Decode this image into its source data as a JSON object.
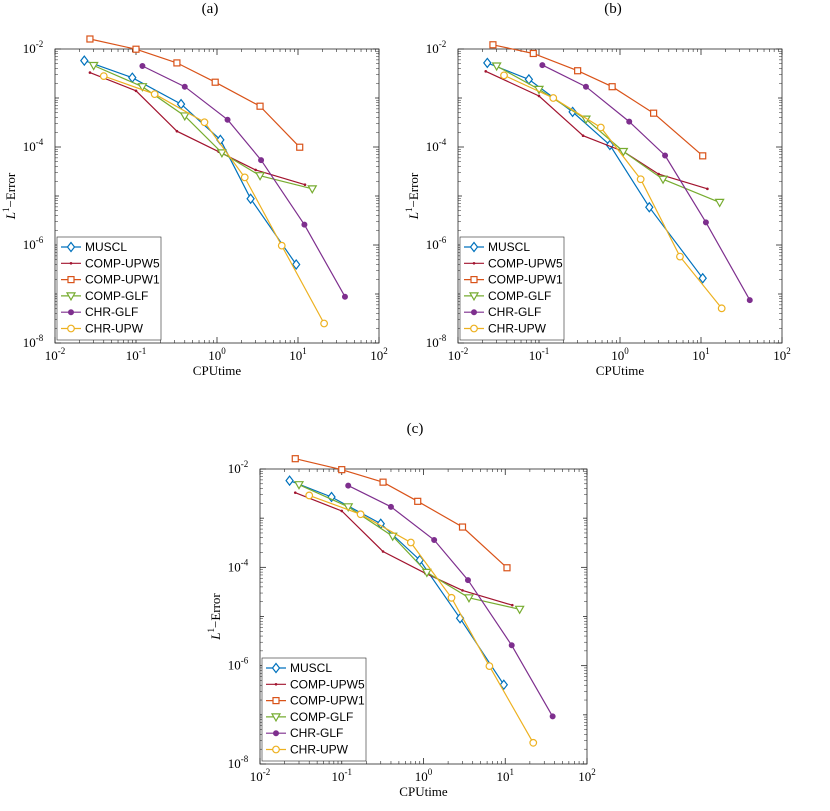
{
  "colors": {
    "MUSCL": "#0072BD",
    "COMP-UPW5": "#A2142F",
    "COMP-UPW1": "#D95319",
    "COMP-GLF": "#77AC30",
    "CHR-GLF": "#7E2F8E",
    "CHR-UPW": "#EDB120"
  },
  "markers": {
    "MUSCL": "diamond",
    "COMP-UPW5": "dot",
    "COMP-UPW1": "square",
    "COMP-GLF": "triangle-down",
    "CHR-GLF": "filled-circle",
    "CHR-UPW": "circle"
  },
  "chart_data": [
    {
      "type": "line",
      "title": "(a)",
      "xlabel": "CPUtime",
      "ylabel_base": "L",
      "ylabel_sup": "1",
      "ylabel_rest": "−Error",
      "xscale": "log",
      "yscale": "log",
      "xlim": [
        0.01,
        100
      ],
      "ylim": [
        1e-08,
        0.01
      ],
      "xticks": [
        {
          "base": "10",
          "exp": "-2"
        },
        {
          "base": "10",
          "exp": "-1"
        },
        {
          "base": "10",
          "exp": "0"
        },
        {
          "base": "10",
          "exp": "1"
        },
        {
          "base": "10",
          "exp": "2"
        }
      ],
      "yticks": [
        {
          "base": "10",
          "exp": "-8"
        },
        {
          "base": "10",
          "exp": "-6"
        },
        {
          "base": "10",
          "exp": "-4"
        },
        {
          "base": "10",
          "exp": "-2"
        }
      ],
      "legend_location": "bottom-left",
      "series": [
        {
          "name": "MUSCL",
          "x": [
            0.023,
            0.09,
            0.36,
            1.1,
            2.6,
            9.5
          ],
          "y": [
            0.0058,
            0.0026,
            0.00075,
            0.00014,
            8.8e-06,
            4e-07
          ]
        },
        {
          "name": "COMP-UPW5",
          "x": [
            0.027,
            0.1,
            0.32,
            1.05,
            3.0,
            12.2
          ],
          "y": [
            0.0033,
            0.0014,
            0.00021,
            8e-05,
            3.4e-05,
            1.7e-05
          ]
        },
        {
          "name": "COMP-UPW1",
          "x": [
            0.027,
            0.1,
            0.32,
            0.95,
            3.4,
            10.5
          ],
          "y": [
            0.016,
            0.0099,
            0.0052,
            0.0021,
            0.00068,
            9.9e-05
          ]
        },
        {
          "name": "COMP-GLF",
          "x": [
            0.03,
            0.12,
            0.4,
            1.15,
            3.4,
            15.0
          ],
          "y": [
            0.0046,
            0.0017,
            0.00043,
            7.6e-05,
            2.6e-05,
            1.4e-05
          ]
        },
        {
          "name": "CHR-GLF",
          "x": [
            0.12,
            0.4,
            1.35,
            3.5,
            12.0,
            38.0
          ],
          "y": [
            0.0045,
            0.0017,
            0.00036,
            5.4e-05,
            2.6e-06,
            8.8e-08
          ]
        },
        {
          "name": "CHR-UPW",
          "x": [
            0.04,
            0.17,
            0.7,
            2.2,
            6.3,
            21.0
          ],
          "y": [
            0.0028,
            0.0012,
            0.00032,
            2.4e-05,
            9.7e-07,
            2.5e-08
          ]
        }
      ]
    },
    {
      "type": "line",
      "title": "(b)",
      "xlabel": "CPUtime",
      "ylabel_base": "L",
      "ylabel_sup": "1",
      "ylabel_rest": "−Error",
      "xscale": "log",
      "yscale": "log",
      "xlim": [
        0.01,
        100
      ],
      "ylim": [
        1e-08,
        0.01
      ],
      "xticks": [
        {
          "base": "10",
          "exp": "-2"
        },
        {
          "base": "10",
          "exp": "-1"
        },
        {
          "base": "10",
          "exp": "0"
        },
        {
          "base": "10",
          "exp": "1"
        },
        {
          "base": "10",
          "exp": "2"
        }
      ],
      "yticks": [
        {
          "base": "10",
          "exp": "-8"
        },
        {
          "base": "10",
          "exp": "-6"
        },
        {
          "base": "10",
          "exp": "-4"
        },
        {
          "base": "10",
          "exp": "-2"
        }
      ],
      "legend_location": "bottom-left",
      "series": [
        {
          "name": "MUSCL",
          "x": [
            0.023,
            0.075,
            0.26,
            0.75,
            2.3,
            10.5
          ],
          "y": [
            0.0052,
            0.0024,
            0.00052,
            0.00011,
            5.9e-06,
            2.1e-07
          ]
        },
        {
          "name": "COMP-UPW5",
          "x": [
            0.022,
            0.1,
            0.35,
            1.1,
            3.0,
            12.0
          ],
          "y": [
            0.0035,
            0.0011,
            0.00017,
            8.1e-05,
            2.8e-05,
            1.4e-05
          ]
        },
        {
          "name": "COMP-UPW1",
          "x": [
            0.027,
            0.085,
            0.3,
            0.8,
            2.6,
            10.5
          ],
          "y": [
            0.0122,
            0.0081,
            0.0036,
            0.0017,
            0.00049,
            6.6e-05
          ]
        },
        {
          "name": "COMP-GLF",
          "x": [
            0.03,
            0.1,
            0.38,
            1.1,
            3.4,
            17.0
          ],
          "y": [
            0.0045,
            0.0015,
            0.00037,
            8.1e-05,
            2.2e-05,
            7.4e-06
          ]
        },
        {
          "name": "CHR-GLF",
          "x": [
            0.11,
            0.38,
            1.3,
            3.6,
            11.5,
            40.0
          ],
          "y": [
            0.0047,
            0.0017,
            0.00033,
            6.7e-05,
            2.9e-06,
            7.5e-08
          ]
        },
        {
          "name": "CHR-UPW",
          "x": [
            0.037,
            0.15,
            0.58,
            1.8,
            5.5,
            18.0
          ],
          "y": [
            0.0029,
            0.001,
            0.00025,
            2.2e-05,
            5.8e-07,
            5.1e-08
          ]
        }
      ]
    },
    {
      "type": "line",
      "title": "(c)",
      "xlabel": "CPUtime",
      "ylabel_base": "L",
      "ylabel_sup": "1",
      "ylabel_rest": "−Error",
      "xscale": "log",
      "yscale": "log",
      "xlim": [
        0.01,
        100
      ],
      "ylim": [
        1e-08,
        0.01
      ],
      "xticks": [
        {
          "base": "10",
          "exp": "-2"
        },
        {
          "base": "10",
          "exp": "-1"
        },
        {
          "base": "10",
          "exp": "0"
        },
        {
          "base": "10",
          "exp": "1"
        },
        {
          "base": "10",
          "exp": "2"
        }
      ],
      "yticks": [
        {
          "base": "10",
          "exp": "-8"
        },
        {
          "base": "10",
          "exp": "-6"
        },
        {
          "base": "10",
          "exp": "-4"
        },
        {
          "base": "10",
          "exp": "-2"
        }
      ],
      "legend_location": "bottom-left",
      "series": [
        {
          "name": "MUSCL",
          "x": [
            0.023,
            0.075,
            0.3,
            0.9,
            2.8,
            9.6
          ],
          "y": [
            0.0058,
            0.0027,
            0.00077,
            0.00014,
            9.2e-06,
            4.1e-07
          ]
        },
        {
          "name": "COMP-UPW5",
          "x": [
            0.027,
            0.1,
            0.32,
            1.05,
            3.0,
            12.2
          ],
          "y": [
            0.0033,
            0.0014,
            0.00021,
            7.6e-05,
            3.4e-05,
            1.7e-05
          ]
        },
        {
          "name": "COMP-UPW1",
          "x": [
            0.027,
            0.1,
            0.32,
            0.85,
            3.0,
            10.5
          ],
          "y": [
            0.0162,
            0.0097,
            0.0054,
            0.0022,
            0.00066,
            9.8e-05
          ]
        },
        {
          "name": "COMP-GLF",
          "x": [
            0.03,
            0.12,
            0.42,
            1.1,
            3.6,
            15.0
          ],
          "y": [
            0.0048,
            0.0017,
            0.00043,
            7.9e-05,
            2.4e-05,
            1.4e-05
          ]
        },
        {
          "name": "CHR-GLF",
          "x": [
            0.12,
            0.4,
            1.35,
            3.5,
            12.0,
            38.0
          ],
          "y": [
            0.0046,
            0.0017,
            0.00036,
            5.5e-05,
            2.6e-06,
            9.3e-08
          ]
        },
        {
          "name": "CHR-UPW",
          "x": [
            0.04,
            0.17,
            0.7,
            2.2,
            6.4,
            22.0
          ],
          "y": [
            0.0029,
            0.0012,
            0.00032,
            2.4e-05,
            9.8e-07,
            2.7e-08
          ]
        }
      ]
    }
  ]
}
